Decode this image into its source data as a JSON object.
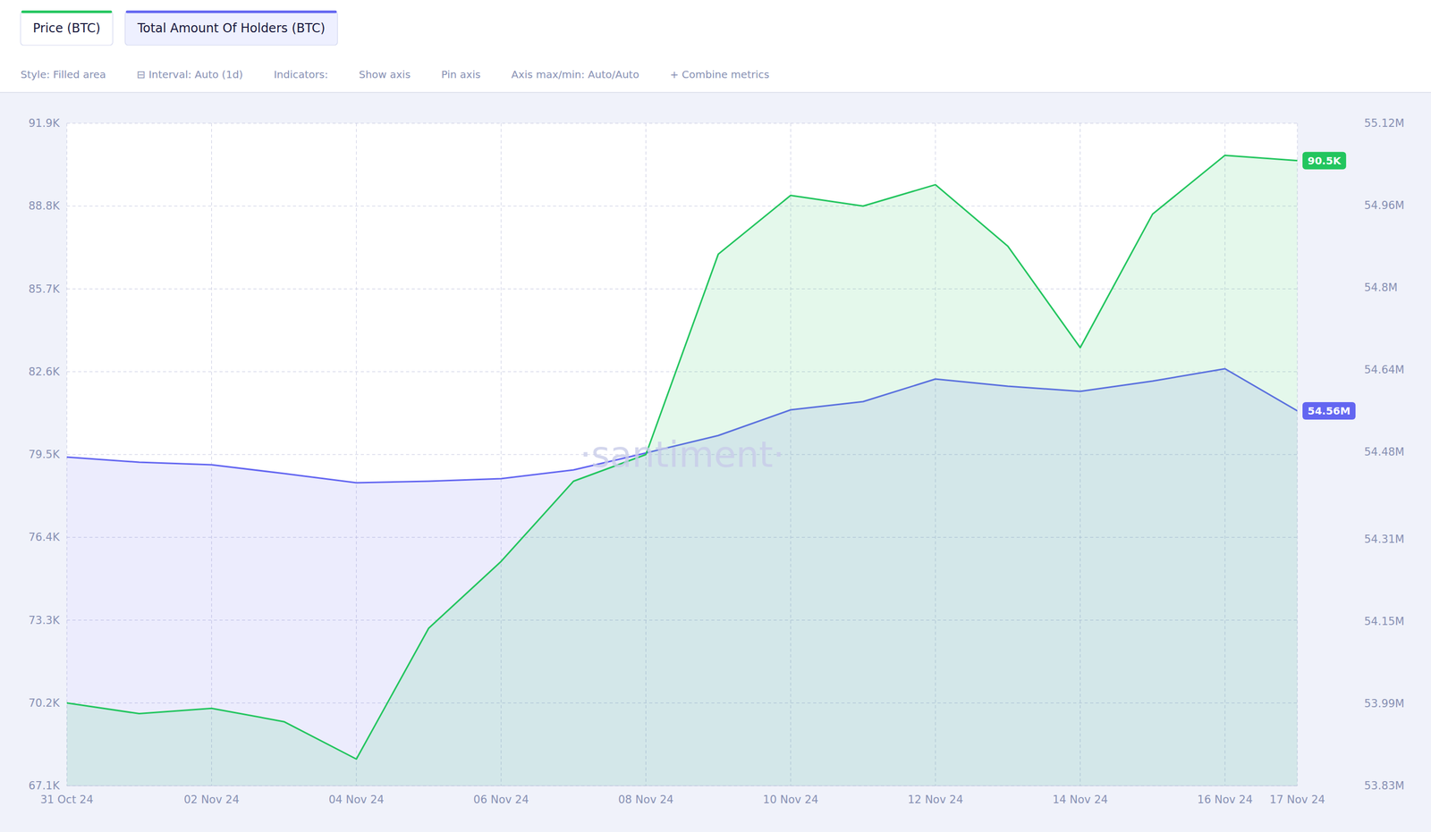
{
  "chart_data": {
    "type": "area",
    "categories": [
      "31 Oct 24",
      null,
      "02 Nov 24",
      null,
      "04 Nov 24",
      null,
      "06 Nov 24",
      null,
      "08 Nov 24",
      null,
      "10 Nov 24",
      null,
      "12 Nov 24",
      null,
      "14 Nov 24",
      null,
      "16 Nov 24",
      "17 Nov 24"
    ],
    "series": [
      {
        "name": "Price (BTC)",
        "color": "#22c55e",
        "type": "area",
        "axis": "y",
        "values": [
          70200,
          69800,
          70000,
          69500,
          68100,
          73000,
          75500,
          78500,
          79500,
          87000,
          89200,
          88800,
          89600,
          87300,
          83500,
          88500,
          90700,
          90500
        ],
        "value_labels": [
          null,
          null,
          null,
          null,
          null,
          null,
          null,
          null,
          null,
          null,
          null,
          null,
          null,
          null,
          null,
          null,
          null,
          "90.5K"
        ]
      },
      {
        "name": "Total Amount Of Holders (BTC)",
        "color": "#6366f1",
        "type": "area",
        "axis": "y2",
        "values": [
          54470000,
          54460000,
          54455000,
          54438000,
          54420000,
          54423000,
          54428000,
          54445000,
          54478000,
          54512000,
          54562000,
          54578000,
          54622000,
          54608000,
          54598000,
          54618000,
          54642000,
          54560000
        ],
        "value_labels": [
          null,
          null,
          null,
          null,
          null,
          null,
          null,
          null,
          null,
          null,
          null,
          null,
          null,
          null,
          null,
          null,
          null,
          "54.56M"
        ]
      }
    ],
    "ylim": [
      67100,
      91900
    ],
    "yticks": [
      {
        "value": 67100,
        "label": "67.1K"
      },
      {
        "value": 70200,
        "label": "70.2K"
      },
      {
        "value": 73300,
        "label": "73.3K"
      },
      {
        "value": 76400,
        "label": "76.4K"
      },
      {
        "value": 79500,
        "label": "79.5K"
      },
      {
        "value": 82600,
        "label": "82.6K"
      },
      {
        "value": 85700,
        "label": "85.7K"
      },
      {
        "value": 88800,
        "label": "88.8K"
      },
      {
        "value": 91900,
        "label": "91.9K"
      }
    ],
    "y2lim": [
      53830000,
      55120000
    ],
    "y2ticks": [
      {
        "value": 53830000,
        "label": "53.83M"
      },
      {
        "value": 53990000,
        "label": "53.99M"
      },
      {
        "value": 54150000,
        "label": "54.15M"
      },
      {
        "value": 54310000,
        "label": "54.31M"
      },
      {
        "value": 54480000,
        "label": "54.48M"
      },
      {
        "value": 54640000,
        "label": "54.64M"
      },
      {
        "value": 54800000,
        "label": "54.8M"
      },
      {
        "value": 54960000,
        "label": "54.96M"
      },
      {
        "value": 55120000,
        "label": "55.12M"
      }
    ],
    "grid": true,
    "legend": "top-left",
    "data_labels": true,
    "annotations": [
      {
        "text": "·santiment·"
      },
      {
        "text": "Style: Filled area"
      },
      {
        "text": "⊟  Interval: Auto (1d)"
      },
      {
        "text": "Indicators:"
      },
      {
        "text": "Show axis"
      },
      {
        "text": "Pin axis"
      },
      {
        "text": "Axis max/min: Auto/Auto"
      },
      {
        "text": "+  Combine metrics"
      }
    ]
  }
}
